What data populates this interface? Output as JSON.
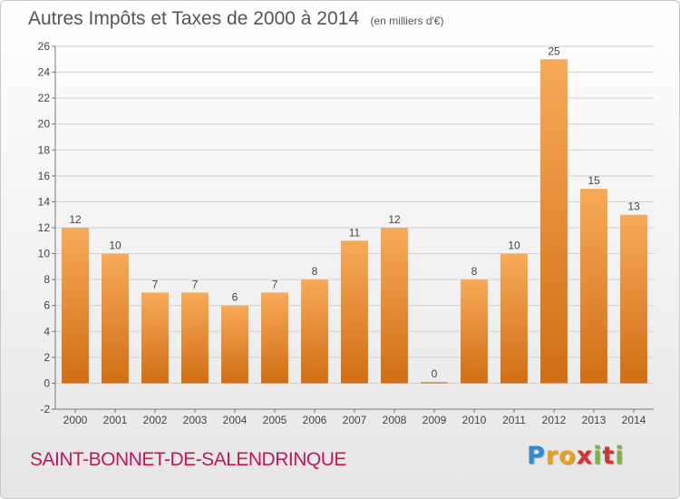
{
  "chart_data": {
    "type": "bar",
    "title": "Autres Impôts et Taxes de 2000 à 2014",
    "subtitle": "(en milliers d'€)",
    "categories": [
      "2000",
      "2001",
      "2002",
      "2003",
      "2004",
      "2005",
      "2006",
      "2007",
      "2008",
      "2009",
      "2010",
      "2011",
      "2012",
      "2013",
      "2014"
    ],
    "values": [
      12,
      10,
      7,
      7,
      6,
      7,
      8,
      11,
      12,
      0,
      8,
      10,
      25,
      15,
      13
    ],
    "value_labels": [
      "12",
      "10",
      "7",
      "7",
      "6",
      "7",
      "8",
      "11",
      "12",
      "0",
      "8",
      "10",
      "25",
      "15",
      "13"
    ],
    "ylim": [
      -2,
      26
    ],
    "yticks": [
      "-2",
      "0",
      "2",
      "4",
      "6",
      "8",
      "10",
      "12",
      "14",
      "16",
      "18",
      "20",
      "22",
      "24",
      "26"
    ],
    "grid": true,
    "bar_color": "#ef922f",
    "bar_color_light": "#f8aa58",
    "bar_color_dark": "#d06e14"
  },
  "footer": {
    "commune": "SAINT-BONNET-DE-SALENDRINQUE",
    "commune_color": "#c2185b",
    "brand": "Proxiti",
    "brand_colors": [
      "#2e8bd6",
      "#e6a320",
      "#e6a320",
      "#d63131",
      "#7cb342",
      "#d63131",
      "#7cb342"
    ]
  }
}
